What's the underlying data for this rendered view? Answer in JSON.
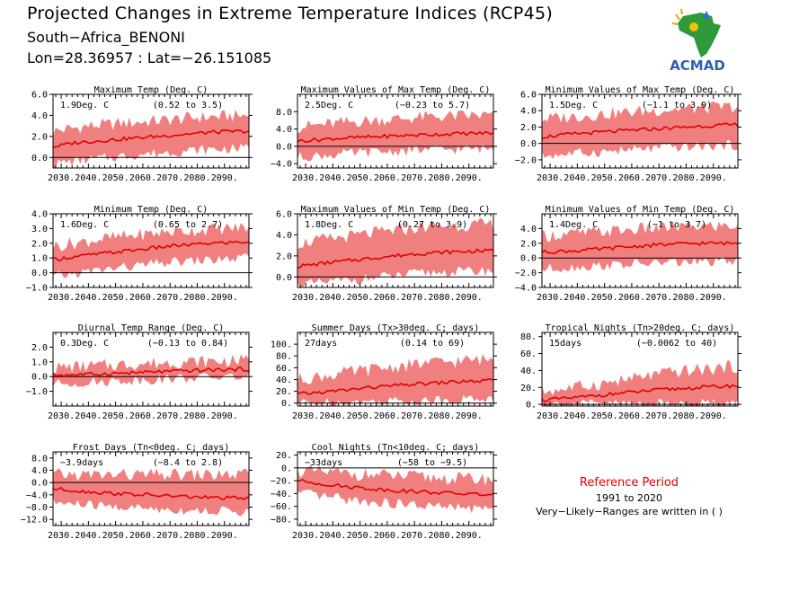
{
  "header": {
    "title": "Projected Changes in Extreme Temperature Indices (RCP45)",
    "subtitle": "South−Africa_BENONI",
    "coords": "Lon=28.36957 : Lat=−26.151085"
  },
  "logo": {
    "text": "ACMAD",
    "icon": "africa-map-logo"
  },
  "reference": {
    "title": "Reference Period",
    "years": "1991 to 2020",
    "note": "Very−Likely−Ranges are written in ( )"
  },
  "colors": {
    "band": "#f08080",
    "line": "#e00000",
    "text": "#000000"
  },
  "chart_data": [
    {
      "type": "area",
      "title": "Maximum Temp (Deg. C)",
      "value_label": "1.9Deg. C",
      "range_label": "(0.52 to 3.5)",
      "ylim": [
        -1.0,
        6.0
      ],
      "yticks": [
        0.0,
        2.0,
        4.0,
        6.0
      ],
      "ytick_labels": [
        "0.0",
        "2.0",
        "4.0",
        "6.0"
      ],
      "xlim": [
        2027,
        2099
      ],
      "xticks": [
        2030,
        2040,
        2050,
        2060,
        2070,
        2080,
        2090
      ],
      "xtick_labels": [
        "2030.",
        "2040.",
        "2050.",
        "2060.",
        "2070.",
        "2080.",
        "2090."
      ],
      "median": [
        [
          2027,
          1.0
        ],
        [
          2035,
          1.4
        ],
        [
          2045,
          1.6
        ],
        [
          2055,
          1.8
        ],
        [
          2065,
          2.0
        ],
        [
          2075,
          2.2
        ],
        [
          2085,
          2.4
        ],
        [
          2099,
          2.5
        ]
      ],
      "band_low": [
        [
          2027,
          -0.6
        ],
        [
          2040,
          -0.2
        ],
        [
          2060,
          0.3
        ],
        [
          2080,
          0.7
        ],
        [
          2099,
          0.9
        ]
      ],
      "band_high": [
        [
          2027,
          2.5
        ],
        [
          2040,
          3.0
        ],
        [
          2060,
          3.4
        ],
        [
          2080,
          3.8
        ],
        [
          2099,
          4.0
        ]
      ]
    },
    {
      "type": "area",
      "title": "Maximum Values of Max Temp (Deg. C)",
      "value_label": "2.5Deg. C",
      "range_label": "(−0.23 to 5.7)",
      "ylim": [
        -5.0,
        12.0
      ],
      "yticks": [
        -4.0,
        0.0,
        4.0,
        8.0
      ],
      "ytick_labels": [
        "−4.0",
        "0.0",
        "4.0",
        "8.0"
      ],
      "xlim": [
        2027,
        2099
      ],
      "xticks": [
        2030,
        2040,
        2050,
        2060,
        2070,
        2080,
        2090
      ],
      "xtick_labels": [
        "2030.",
        "2040.",
        "2050.",
        "2060.",
        "2070.",
        "2080.",
        "2090."
      ],
      "median": [
        [
          2027,
          1.2
        ],
        [
          2040,
          1.8
        ],
        [
          2055,
          2.2
        ],
        [
          2070,
          2.6
        ],
        [
          2085,
          2.9
        ],
        [
          2099,
          3.1
        ]
      ],
      "band_low": [
        [
          2027,
          -2.5
        ],
        [
          2050,
          -1.5
        ],
        [
          2075,
          -0.8
        ],
        [
          2099,
          -0.5
        ]
      ],
      "band_high": [
        [
          2027,
          4.5
        ],
        [
          2050,
          5.8
        ],
        [
          2075,
          6.8
        ],
        [
          2099,
          7.2
        ]
      ]
    },
    {
      "type": "area",
      "title": "Minimum Values of Max Temp (Deg. C)",
      "value_label": "1.5Deg. C",
      "range_label": "(−1.1 to 3.9)",
      "ylim": [
        -3.0,
        6.0
      ],
      "yticks": [
        -2.0,
        0.0,
        2.0,
        4.0,
        6.0
      ],
      "ytick_labels": [
        "−2.0",
        "0.0",
        "2.0",
        "4.0",
        "6.0"
      ],
      "xlim": [
        2027,
        2099
      ],
      "xticks": [
        2030,
        2040,
        2050,
        2060,
        2070,
        2080,
        2090
      ],
      "xtick_labels": [
        "2030.",
        "2040.",
        "2050.",
        "2060.",
        "2070.",
        "2080.",
        "2090."
      ],
      "median": [
        [
          2027,
          0.8
        ],
        [
          2040,
          1.2
        ],
        [
          2055,
          1.5
        ],
        [
          2070,
          1.8
        ],
        [
          2085,
          2.1
        ],
        [
          2099,
          2.3
        ]
      ],
      "band_low": [
        [
          2027,
          -1.5
        ],
        [
          2050,
          -1.0
        ],
        [
          2075,
          -0.5
        ],
        [
          2099,
          -0.2
        ]
      ],
      "band_high": [
        [
          2027,
          3.0
        ],
        [
          2050,
          3.6
        ],
        [
          2075,
          4.2
        ],
        [
          2099,
          4.5
        ]
      ]
    },
    {
      "type": "area",
      "title": "Minimum Temp (Deg. C)",
      "value_label": "1.6Deg. C",
      "range_label": "(0.65 to 2.7)",
      "ylim": [
        -1.0,
        4.0
      ],
      "yticks": [
        -1.0,
        0.0,
        1.0,
        2.0,
        3.0,
        4.0
      ],
      "ytick_labels": [
        "−1.0",
        "0.0",
        "1.0",
        "2.0",
        "3.0",
        "4.0"
      ],
      "xlim": [
        2027,
        2099
      ],
      "xticks": [
        2030,
        2040,
        2050,
        2060,
        2070,
        2080,
        2090
      ],
      "xtick_labels": [
        "2030.",
        "2040.",
        "2050.",
        "2060.",
        "2070.",
        "2080.",
        "2090."
      ],
      "median": [
        [
          2027,
          0.9
        ],
        [
          2040,
          1.2
        ],
        [
          2055,
          1.5
        ],
        [
          2070,
          1.8
        ],
        [
          2085,
          2.0
        ],
        [
          2099,
          2.1
        ]
      ],
      "band_low": [
        [
          2027,
          -0.3
        ],
        [
          2045,
          0.2
        ],
        [
          2070,
          0.7
        ],
        [
          2099,
          1.0
        ]
      ],
      "band_high": [
        [
          2027,
          1.8
        ],
        [
          2045,
          2.3
        ],
        [
          2070,
          2.8
        ],
        [
          2099,
          3.1
        ]
      ]
    },
    {
      "type": "area",
      "title": "Maximum Values of Min Temp (Deg. C)",
      "value_label": "1.8Deg. C",
      "range_label": "(0.27 to 3.9)",
      "ylim": [
        -1.0,
        6.0
      ],
      "yticks": [
        0.0,
        2.0,
        4.0,
        6.0
      ],
      "ytick_labels": [
        "0.0",
        "2.0",
        "4.0",
        "6.0"
      ],
      "xlim": [
        2027,
        2099
      ],
      "xticks": [
        2030,
        2040,
        2050,
        2060,
        2070,
        2080,
        2090
      ],
      "xtick_labels": [
        "2030.",
        "2040.",
        "2050.",
        "2060.",
        "2070.",
        "2080.",
        "2090."
      ],
      "median": [
        [
          2027,
          1.0
        ],
        [
          2040,
          1.4
        ],
        [
          2055,
          1.8
        ],
        [
          2070,
          2.2
        ],
        [
          2085,
          2.4
        ],
        [
          2099,
          2.5
        ]
      ],
      "band_low": [
        [
          2027,
          -0.8
        ],
        [
          2050,
          -0.2
        ],
        [
          2075,
          0.4
        ],
        [
          2099,
          0.6
        ]
      ],
      "band_high": [
        [
          2027,
          3.2
        ],
        [
          2050,
          4.0
        ],
        [
          2075,
          4.8
        ],
        [
          2099,
          5.0
        ]
      ]
    },
    {
      "type": "area",
      "title": "Minimum Values of Min Temp (Deg. C)",
      "value_label": "1.4Deg. C",
      "range_label": "(−1 to 3.7)",
      "ylim": [
        -4.0,
        6.0
      ],
      "yticks": [
        -4.0,
        -2.0,
        0.0,
        2.0,
        4.0
      ],
      "ytick_labels": [
        "−4.0",
        "−2.0",
        "0.0",
        "2.0",
        "4.0"
      ],
      "xlim": [
        2027,
        2099
      ],
      "xticks": [
        2030,
        2040,
        2050,
        2060,
        2070,
        2080,
        2090
      ],
      "xtick_labels": [
        "2030.",
        "2040.",
        "2050.",
        "2060.",
        "2070.",
        "2080.",
        "2090."
      ],
      "median": [
        [
          2027,
          0.8
        ],
        [
          2040,
          1.0
        ],
        [
          2055,
          1.4
        ],
        [
          2070,
          1.8
        ],
        [
          2085,
          2.0
        ],
        [
          2099,
          2.0
        ]
      ],
      "band_low": [
        [
          2027,
          -1.5
        ],
        [
          2050,
          -1.0
        ],
        [
          2075,
          -0.6
        ],
        [
          2099,
          -0.5
        ]
      ],
      "band_high": [
        [
          2027,
          3.0
        ],
        [
          2050,
          3.6
        ],
        [
          2075,
          4.2
        ],
        [
          2099,
          4.4
        ]
      ]
    },
    {
      "type": "area",
      "title": "Diurnal Temp Range (Deg. C)",
      "value_label": "0.3Deg. C",
      "range_label": "(−0.13 to 0.84)",
      "ylim": [
        -2.0,
        3.0
      ],
      "yticks": [
        -1.0,
        0.0,
        1.0,
        2.0
      ],
      "ytick_labels": [
        "−1.0",
        "0.0",
        "1.0",
        "2.0"
      ],
      "xlim": [
        2027,
        2099
      ],
      "xticks": [
        2030,
        2040,
        2050,
        2060,
        2070,
        2080,
        2090
      ],
      "xtick_labels": [
        "2030.",
        "2040.",
        "2050.",
        "2060.",
        "2070.",
        "2080.",
        "2090."
      ],
      "median": [
        [
          2027,
          0.1
        ],
        [
          2040,
          0.15
        ],
        [
          2055,
          0.25
        ],
        [
          2070,
          0.35
        ],
        [
          2085,
          0.45
        ],
        [
          2099,
          0.5
        ]
      ],
      "band_low": [
        [
          2027,
          -0.5
        ],
        [
          2050,
          -0.3
        ],
        [
          2075,
          -0.1
        ],
        [
          2099,
          0.0
        ]
      ],
      "band_high": [
        [
          2027,
          0.6
        ],
        [
          2050,
          0.8
        ],
        [
          2075,
          1.0
        ],
        [
          2099,
          1.1
        ]
      ]
    },
    {
      "type": "area",
      "title": "Summer Days (Tx>30deg. C; days)",
      "value_label": "27days",
      "range_label": "(0.14 to 69)",
      "ylim": [
        -5.0,
        120.0
      ],
      "yticks": [
        0,
        20,
        40,
        60,
        80,
        100
      ],
      "ytick_labels": [
        "0.",
        "20.",
        "40.",
        "60.",
        "80.",
        "100."
      ],
      "xlim": [
        2027,
        2099
      ],
      "xticks": [
        2030,
        2040,
        2050,
        2060,
        2070,
        2080,
        2090
      ],
      "xtick_labels": [
        "2030.",
        "2040.",
        "2050.",
        "2060.",
        "2070.",
        "2080.",
        "2090."
      ],
      "median": [
        [
          2027,
          15
        ],
        [
          2040,
          20
        ],
        [
          2055,
          27
        ],
        [
          2070,
          32
        ],
        [
          2085,
          36
        ],
        [
          2099,
          38
        ]
      ],
      "band_low": [
        [
          2027,
          0
        ],
        [
          2050,
          2
        ],
        [
          2075,
          5
        ],
        [
          2099,
          8
        ]
      ],
      "band_high": [
        [
          2027,
          40
        ],
        [
          2050,
          55
        ],
        [
          2075,
          68
        ],
        [
          2099,
          75
        ]
      ]
    },
    {
      "type": "area",
      "title": "Tropical Nights (Tn>20deg. C; days)",
      "value_label": "15days",
      "range_label": "(−0.0062 to 40)",
      "ylim": [
        -2.0,
        85.0
      ],
      "yticks": [
        0,
        20,
        40,
        60,
        80
      ],
      "ytick_labels": [
        "0.",
        "20.",
        "40.",
        "60.",
        "80."
      ],
      "xlim": [
        2027,
        2099
      ],
      "xticks": [
        2030,
        2040,
        2050,
        2060,
        2070,
        2080,
        2090
      ],
      "xtick_labels": [
        "2030.",
        "2040.",
        "2050.",
        "2060.",
        "2070.",
        "2080.",
        "2090."
      ],
      "median": [
        [
          2027,
          5
        ],
        [
          2040,
          8
        ],
        [
          2055,
          13
        ],
        [
          2070,
          17
        ],
        [
          2085,
          20
        ],
        [
          2099,
          22
        ]
      ],
      "band_low": [
        [
          2027,
          0
        ],
        [
          2050,
          0.5
        ],
        [
          2075,
          1
        ],
        [
          2099,
          2
        ]
      ],
      "band_high": [
        [
          2027,
          15
        ],
        [
          2050,
          25
        ],
        [
          2075,
          38
        ],
        [
          2099,
          45
        ]
      ]
    },
    {
      "type": "area",
      "title": "Frost Days (Tn<0deg. C; days)",
      "value_label": "−3.9days",
      "range_label": "(−8.4 to 2.8)",
      "ylim": [
        -14.0,
        10.0
      ],
      "yticks": [
        -12.0,
        -8.0,
        -4.0,
        0.0,
        4.0,
        8.0
      ],
      "ytick_labels": [
        "−12.0",
        "−8.0",
        "−4.0",
        "0.0",
        "4.0",
        "8.0"
      ],
      "xlim": [
        2027,
        2099
      ],
      "xticks": [
        2030,
        2040,
        2050,
        2060,
        2070,
        2080,
        2090
      ],
      "xtick_labels": [
        "2030.",
        "2040.",
        "2050.",
        "2060.",
        "2070.",
        "2080.",
        "2090."
      ],
      "median": [
        [
          2027,
          -2.0
        ],
        [
          2040,
          -3.0
        ],
        [
          2055,
          -3.8
        ],
        [
          2070,
          -4.4
        ],
        [
          2085,
          -4.9
        ],
        [
          2099,
          -5.2
        ]
      ],
      "band_low": [
        [
          2027,
          -6.5
        ],
        [
          2050,
          -8.0
        ],
        [
          2075,
          -9.0
        ],
        [
          2099,
          -9.5
        ]
      ],
      "band_high": [
        [
          2027,
          2.5
        ],
        [
          2050,
          2.5
        ],
        [
          2075,
          2.5
        ],
        [
          2099,
          2.5
        ]
      ]
    },
    {
      "type": "area",
      "title": "Cool Nights (Tn<10deg. C; days)",
      "value_label": "−33days",
      "range_label": "(−58 to −9.5)",
      "ylim": [
        -90.0,
        25.0
      ],
      "yticks": [
        -80,
        -60,
        -40,
        -20,
        0,
        20
      ],
      "ytick_labels": [
        "−80.",
        "−60.",
        "−40.",
        "−20.",
        "0.",
        "20."
      ],
      "xlim": [
        2027,
        2099
      ],
      "xticks": [
        2030,
        2040,
        2050,
        2060,
        2070,
        2080,
        2090
      ],
      "xtick_labels": [
        "2030.",
        "2040.",
        "2050.",
        "2060.",
        "2070.",
        "2080.",
        "2090."
      ],
      "median": [
        [
          2027,
          -20
        ],
        [
          2040,
          -27
        ],
        [
          2055,
          -33
        ],
        [
          2070,
          -37
        ],
        [
          2085,
          -40
        ],
        [
          2099,
          -42
        ]
      ],
      "band_low": [
        [
          2027,
          -40
        ],
        [
          2050,
          -52
        ],
        [
          2075,
          -60
        ],
        [
          2099,
          -65
        ]
      ],
      "band_high": [
        [
          2027,
          -5
        ],
        [
          2050,
          -10
        ],
        [
          2075,
          -15
        ],
        [
          2099,
          -18
        ]
      ]
    }
  ]
}
